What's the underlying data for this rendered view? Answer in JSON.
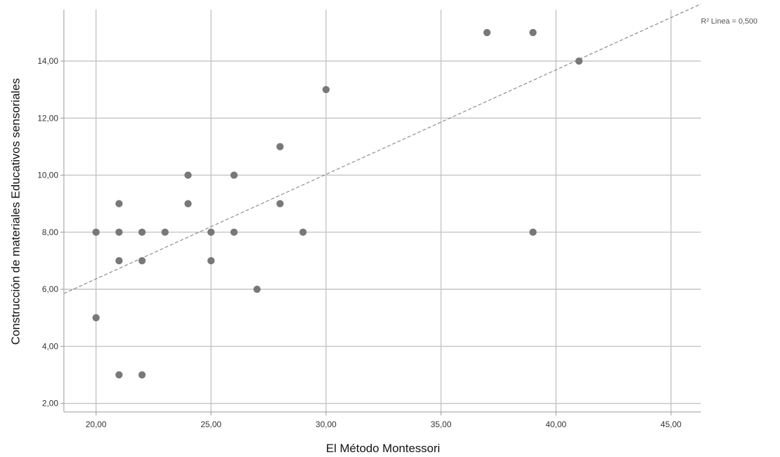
{
  "chart_data": {
    "type": "scatter",
    "xlabel": "El Método Montessori",
    "ylabel": "Construcción de materiales Educativos sensoriales",
    "xlim": [
      18.6,
      46.3
    ],
    "ylim": [
      1.7,
      15.8
    ],
    "x_ticks": [
      20,
      25,
      30,
      35,
      40,
      45
    ],
    "x_tick_labels": [
      "20,00",
      "25,00",
      "30,00",
      "35,00",
      "40,00",
      "45,00"
    ],
    "y_ticks": [
      2,
      4,
      6,
      8,
      10,
      12,
      14
    ],
    "y_tick_labels": [
      "2,00",
      "4,00",
      "6,00",
      "8,00",
      "10,00",
      "12,00",
      "14,00"
    ],
    "grid": true,
    "points": [
      {
        "x": 20,
        "y": 8
      },
      {
        "x": 20,
        "y": 5
      },
      {
        "x": 21,
        "y": 9
      },
      {
        "x": 21,
        "y": 8
      },
      {
        "x": 21,
        "y": 7
      },
      {
        "x": 21,
        "y": 3
      },
      {
        "x": 22,
        "y": 8
      },
      {
        "x": 22,
        "y": 7
      },
      {
        "x": 22,
        "y": 3
      },
      {
        "x": 23,
        "y": 8
      },
      {
        "x": 24,
        "y": 10
      },
      {
        "x": 24,
        "y": 9
      },
      {
        "x": 25,
        "y": 8
      },
      {
        "x": 25,
        "y": 7
      },
      {
        "x": 26,
        "y": 10
      },
      {
        "x": 26,
        "y": 8
      },
      {
        "x": 27,
        "y": 6
      },
      {
        "x": 28,
        "y": 11
      },
      {
        "x": 28,
        "y": 9
      },
      {
        "x": 29,
        "y": 8
      },
      {
        "x": 30,
        "y": 13
      },
      {
        "x": 37,
        "y": 15
      },
      {
        "x": 39,
        "y": 15
      },
      {
        "x": 39,
        "y": 8
      },
      {
        "x": 41,
        "y": 14
      }
    ],
    "fit_line": {
      "x": [
        18.6,
        46.3
      ],
      "y": [
        5.85,
        16.0
      ]
    },
    "fit_label": "R² Linea = 0,500",
    "colors": {
      "point": "#787878",
      "grid": "#c4c4c4",
      "fit": "#8c8c8c",
      "axis": "#999999"
    }
  }
}
